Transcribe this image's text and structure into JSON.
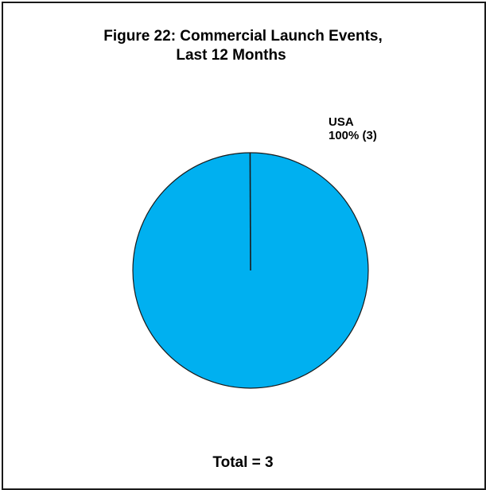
{
  "chart_data": {
    "type": "pie",
    "title_lines": [
      "Figure 22: Commercial Launch Events,",
      "Last 12 Months"
    ],
    "slices": [
      {
        "name": "USA",
        "value": 3,
        "percent_label": "100% (3)",
        "color": "#00b0f0"
      }
    ],
    "total_label": "Total = 3",
    "legend": "none"
  }
}
